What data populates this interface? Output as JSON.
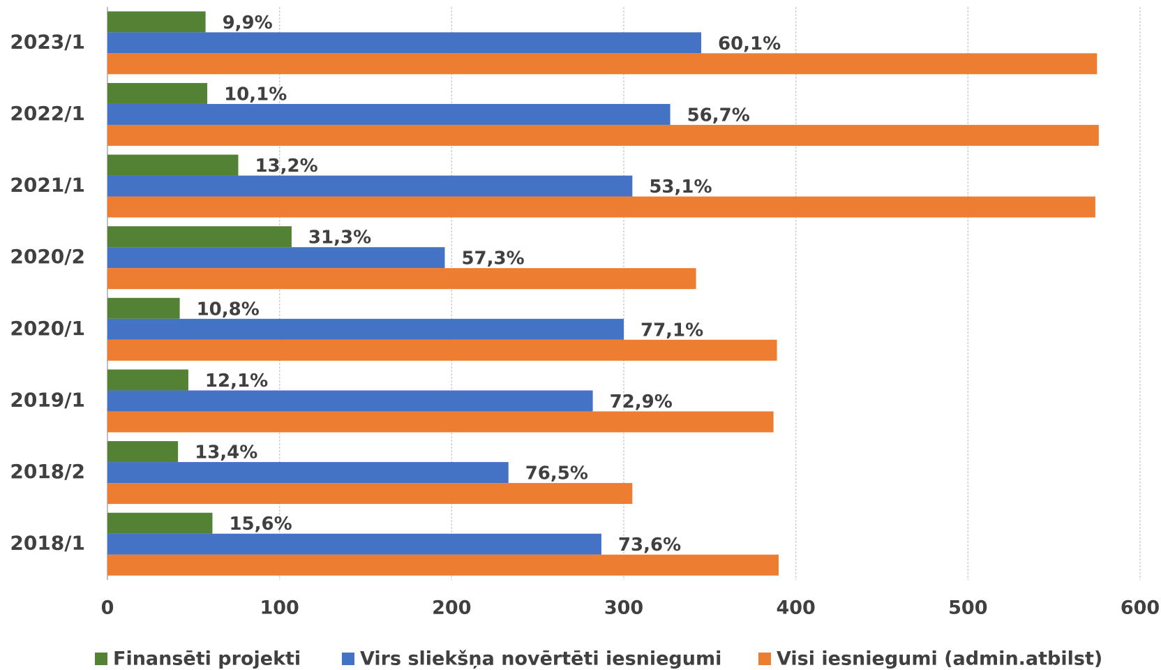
{
  "chart_data": {
    "type": "hbar",
    "categories": [
      "2023/1",
      "2022/1",
      "2021/1",
      "2020/2",
      "2020/1",
      "2019/1",
      "2018/2",
      "2018/1"
    ],
    "series": [
      {
        "name": "Finansēti projekti",
        "color": "#548235",
        "values": [
          57,
          58,
          76,
          107,
          42,
          47,
          41,
          61
        ],
        "data_labels": [
          "9,9%",
          "10,1%",
          "13,2%",
          "31,3%",
          "10,8%",
          "12,1%",
          "13,4%",
          "15,6%"
        ]
      },
      {
        "name": "Virs sliekšņa novērtēti iesniegumi",
        "color": "#4472c4",
        "values": [
          345,
          327,
          305,
          196,
          300,
          282,
          233,
          287
        ],
        "data_labels": [
          "60,1%",
          "56,7%",
          "53,1%",
          "57,3%",
          "77,1%",
          "72,9%",
          "76,5%",
          "73,6%"
        ]
      },
      {
        "name": "Visi iesniegumi (admin.atbilst)",
        "color": "#ed7d31",
        "values": [
          575,
          576,
          574,
          342,
          389,
          387,
          305,
          390
        ]
      }
    ],
    "xlim": [
      0,
      600
    ],
    "xticks": [
      0,
      100,
      200,
      300,
      400,
      500,
      600
    ],
    "grid": true,
    "legend": "bottom"
  }
}
